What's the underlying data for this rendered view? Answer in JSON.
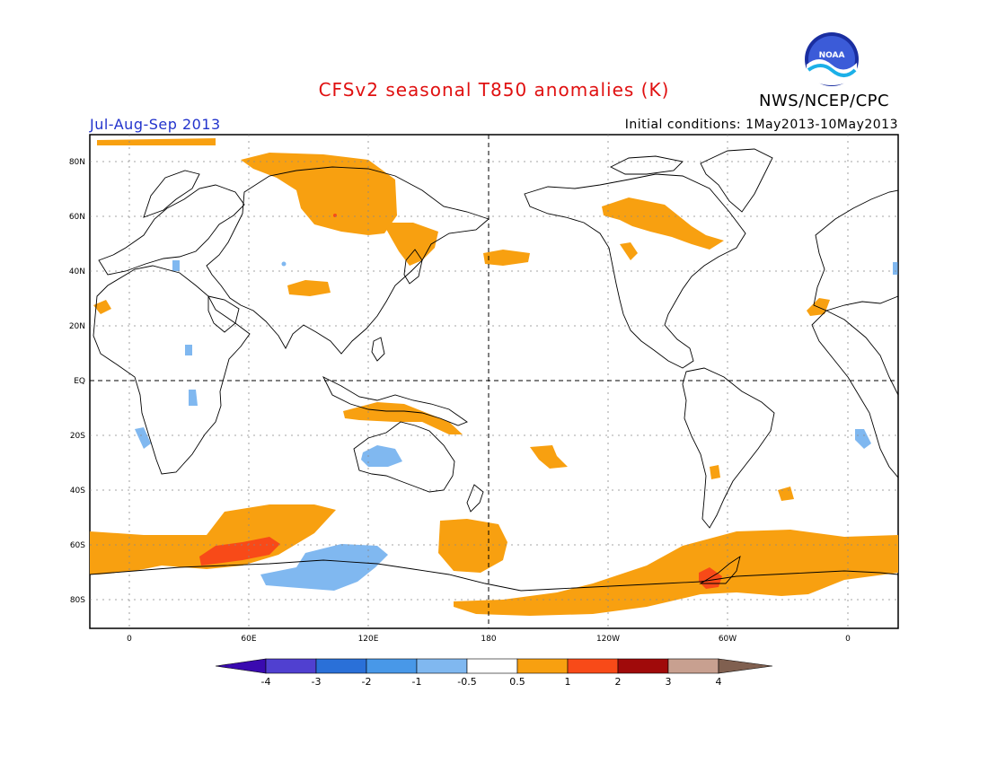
{
  "header": {
    "title": "CFSv2 seasonal T850 anomalies (K)",
    "agency": "NWS/NCEP/CPC",
    "logo_text": "NOAA",
    "season": "Jul-Aug-Sep 2013",
    "initial_conditions": "Initial conditions: 1May2013-10May2013"
  },
  "map": {
    "lat_labels": [
      "80N",
      "60N",
      "40N",
      "20N",
      "EQ",
      "20S",
      "40S",
      "60S",
      "80S"
    ],
    "lon_labels": [
      "0",
      "60E",
      "120E",
      "180",
      "120W",
      "60W",
      "0"
    ],
    "colors": {
      "land_outline": "#000000",
      "orange": "#f8a010",
      "red_orange": "#f84a18",
      "light_blue": "#80b8f0",
      "mid_blue": "#4898e8"
    }
  },
  "colorbar": {
    "labels": [
      "-4",
      "-3",
      "-2",
      "-1",
      "-0.5",
      "0.5",
      "1",
      "2",
      "3",
      "4"
    ],
    "colors": [
      "#3a0ab0",
      "#5040d0",
      "#2a70d8",
      "#4898e8",
      "#80b8f0",
      "#ffffff",
      "#f8a010",
      "#f84a18",
      "#a00a0a",
      "#c8a090",
      "#806050"
    ]
  }
}
